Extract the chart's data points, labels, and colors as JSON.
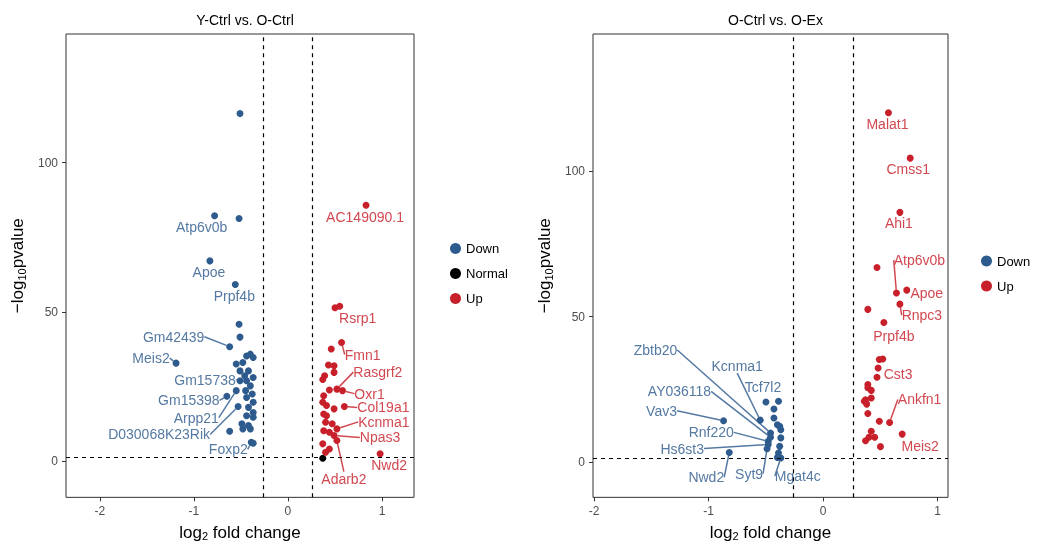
{
  "chart_data": [
    {
      "type": "scatter",
      "title": "Y-Ctrl vs. O-Ctrl",
      "xlabel": "log$_{2}$ fold change",
      "ylabel": "−log$_{10}$pvalue",
      "xlim": [
        -2.36,
        1.34
      ],
      "ylim": [
        -12,
        143
      ],
      "xticks": [
        -2,
        -1,
        0,
        1
      ],
      "yticks": [
        0,
        50,
        100
      ],
      "grid": false,
      "legend": "right",
      "marker": "circle",
      "ref_lines": [
        {
          "axis": "x",
          "value": -0.26,
          "line_style": "dashed"
        },
        {
          "axis": "x",
          "value": 0.26,
          "line_style": "dashed"
        },
        {
          "axis": "y",
          "value": 1.3,
          "line_style": "dashed"
        }
      ],
      "series": [
        {
          "name": "Down",
          "color": "#2e5b8e",
          "x": [
            -0.51,
            -0.78,
            -0.52,
            -0.83,
            -0.56,
            -0.52,
            -0.51,
            -0.62,
            -1.19,
            -0.44,
            -0.4,
            -0.37,
            -0.55,
            -0.48,
            -0.51,
            -0.42,
            -0.46,
            -0.37,
            -0.51,
            -0.44,
            -0.4,
            -0.65,
            -0.55,
            -0.53,
            -0.62,
            -0.45,
            -0.38,
            -0.44,
            -0.37,
            -0.42,
            -0.37,
            -0.44,
            -0.37,
            -0.49,
            -0.42,
            -0.48,
            -0.4,
            -0.39,
            -0.37
          ],
          "values": [
            116.4,
            82.2,
            81.3,
            67.1,
            59.2,
            45.9,
            41.6,
            38.4,
            32.9,
            35.3,
            35.9,
            34.8,
            32.6,
            33.1,
            30.3,
            30.3,
            28.7,
            28.1,
            27,
            27,
            25.3,
            21.8,
            23.7,
            18.4,
            10.1,
            23.7,
            22.6,
            21.4,
            19.8,
            18.1,
            16.4,
            15.3,
            14.8,
            12.6,
            12,
            10.9,
            10.9,
            6.4,
            6.1
          ],
          "value_labels": [
            null,
            "Atp6v0b",
            null,
            "Apoe",
            "Prpf4b",
            null,
            null,
            "Gm42439",
            "Meis2",
            null,
            null,
            null,
            null,
            null,
            null,
            null,
            null,
            null,
            "Gm15738",
            null,
            null,
            "Gm15398",
            "Arpp21",
            "D030068K23Rik",
            null,
            null,
            null,
            null,
            null,
            null,
            null,
            null,
            null,
            null,
            null,
            null,
            null,
            "Foxp2",
            null
          ]
        },
        {
          "name": "Normal",
          "color": "#000000",
          "x": [
            0.37
          ],
          "values": [
            1.1
          ]
        },
        {
          "name": "Up",
          "color": "#c8202a",
          "x": [
            0.83,
            0.5,
            0.55,
            0.57,
            0.46,
            0.43,
            0.49,
            0.49,
            0.37,
            0.39,
            0.52,
            0.58,
            0.44,
            0.38,
            0.6,
            0.37,
            0.41,
            0.49,
            0.38,
            0.41,
            0.4,
            0.47,
            0.52,
            0.38,
            0.44,
            0.49,
            0.52,
            0.37,
            0.44,
            0.4,
            0.98
          ],
          "values": [
            85.7,
            51.4,
            51.9,
            39.8,
            37.6,
            32.3,
            32,
            29.8,
            27.4,
            28.7,
            24.2,
            23.7,
            23.9,
            22,
            18.4,
            19.8,
            18.7,
            17.6,
            15.9,
            15.3,
            13.1,
            12.6,
            10.9,
            10.3,
            9.8,
            8.7,
            7,
            5.9,
            4.2,
            3.1,
            2.6
          ],
          "value_labels": [
            "AC149090.1",
            null,
            "Rsrp1",
            "Fmn1",
            null,
            null,
            null,
            null,
            null,
            null,
            "Rasgrf2",
            "Oxr1",
            null,
            null,
            "Col19a1",
            null,
            null,
            null,
            null,
            null,
            null,
            null,
            "Kcnma1",
            null,
            null,
            "Npas3",
            "Adarb2",
            null,
            null,
            null,
            "Nwd2"
          ]
        }
      ]
    },
    {
      "type": "scatter",
      "title": "O-Ctrl vs. O-Ex",
      "xlabel": "log$_{2}$ fold change",
      "ylabel": "−log$_{10}$pvalue",
      "xlim": [
        -2.01,
        1.09
      ],
      "ylim": [
        -12,
        147
      ],
      "xticks": [
        -2,
        -1,
        0,
        1
      ],
      "yticks": [
        0,
        50,
        100
      ],
      "grid": false,
      "legend": "right",
      "marker": "circle",
      "ref_lines": [
        {
          "axis": "x",
          "value": -0.26,
          "line_style": "dashed"
        },
        {
          "axis": "x",
          "value": 0.26,
          "line_style": "dashed"
        },
        {
          "axis": "y",
          "value": 1.3,
          "line_style": "dashed"
        }
      ],
      "series": [
        {
          "name": "Down",
          "color": "#2e5b8e",
          "x": [
            -0.87,
            -0.82,
            -0.55,
            -0.5,
            -0.39,
            -0.43,
            -0.43,
            -0.4,
            -0.38,
            -0.37,
            -0.46,
            -0.46,
            -0.37,
            -0.48,
            -0.48,
            -0.38,
            -0.49,
            -0.39,
            -0.4,
            -0.37
          ],
          "values": [
            14.3,
            3.4,
            14.5,
            20.7,
            21,
            18.3,
            15.2,
            12.9,
            12.4,
            11.2,
            10.1,
            8.6,
            8.4,
            7.2,
            6.1,
            5.5,
            4.7,
            3.2,
            1.7,
            1.5
          ],
          "value_labels": [
            "Vav3",
            "Nwd2",
            "Kcnma1",
            "Tcf7l2",
            null,
            null,
            null,
            null,
            null,
            null,
            "Zbtb20",
            "AY036118",
            null,
            "Rnf220",
            "Hs6st3",
            null,
            "Syt9",
            null,
            null,
            "Mgat4c"
          ]
        },
        {
          "name": "Up",
          "color": "#c8202a",
          "x": [
            0.57,
            0.76,
            0.67,
            0.47,
            0.64,
            0.73,
            0.67,
            0.39,
            0.53,
            0.49,
            0.52,
            0.48,
            0.47,
            0.39,
            0.39,
            0.42,
            0.42,
            0.37,
            0.36,
            0.38,
            0.39,
            0.49,
            0.58,
            0.69,
            0.42,
            0.4,
            0.45,
            0.37,
            0.5
          ],
          "values": [
            120,
            104.4,
            85.8,
            66.9,
            58.1,
            59.1,
            54.3,
            52.5,
            48,
            35.3,
            35.5,
            32.4,
            29.2,
            26.7,
            25.6,
            24.7,
            22.1,
            21.5,
            21,
            20,
            16.8,
            14.1,
            13.7,
            9.7,
            10.7,
            8.6,
            8.6,
            7.4,
            5.4
          ],
          "value_labels": [
            "Malat1",
            "Cmss1",
            "Ahi1",
            null,
            "Atp6v0b",
            "Apoe",
            "Rnpc3",
            null,
            "Prpf4b",
            null,
            null,
            "Cst3",
            null,
            null,
            null,
            null,
            null,
            null,
            null,
            null,
            null,
            null,
            "Ankfn1",
            "Meis2",
            null,
            null,
            null,
            null,
            null
          ]
        }
      ]
    }
  ]
}
